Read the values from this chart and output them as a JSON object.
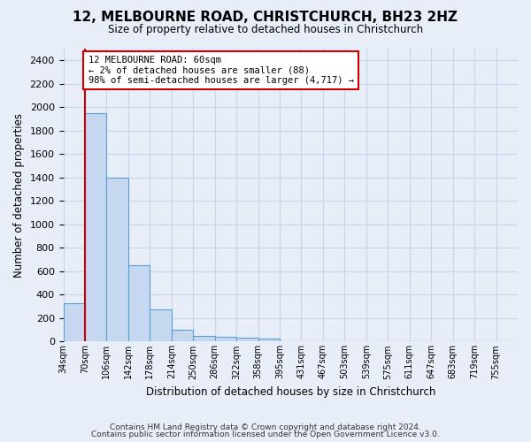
{
  "title": "12, MELBOURNE ROAD, CHRISTCHURCH, BH23 2HZ",
  "subtitle": "Size of property relative to detached houses in Christchurch",
  "xlabel": "Distribution of detached houses by size in Christchurch",
  "ylabel": "Number of detached properties",
  "footer_line1": "Contains HM Land Registry data © Crown copyright and database right 2024.",
  "footer_line2": "Contains public sector information licensed under the Open Government Licence v3.0.",
  "bin_labels": [
    "34sqm",
    "70sqm",
    "106sqm",
    "142sqm",
    "178sqm",
    "214sqm",
    "250sqm",
    "286sqm",
    "322sqm",
    "358sqm",
    "395sqm",
    "431sqm",
    "467sqm",
    "503sqm",
    "539sqm",
    "575sqm",
    "611sqm",
    "647sqm",
    "683sqm",
    "719sqm",
    "755sqm"
  ],
  "bar_heights": [
    325,
    1950,
    1400,
    650,
    275,
    100,
    48,
    40,
    35,
    22,
    0,
    0,
    0,
    0,
    0,
    0,
    0,
    0,
    0,
    0,
    0
  ],
  "bar_color": "#c5d8ef",
  "bar_edge_color": "#5a9fd4",
  "ylim": [
    0,
    2500
  ],
  "yticks": [
    0,
    200,
    400,
    600,
    800,
    1000,
    1200,
    1400,
    1600,
    1800,
    2000,
    2200,
    2400
  ],
  "annotation_text": "12 MELBOURNE ROAD: 60sqm\n← 2% of detached houses are smaller (88)\n98% of semi-detached houses are larger (4,717) →",
  "annotation_box_color": "#ffffff",
  "annotation_border_color": "#cc0000",
  "property_line_color": "#cc0000",
  "grid_color": "#c8d4e8",
  "background_color": "#e8eef8",
  "plot_bg_color": "#e8eef8"
}
